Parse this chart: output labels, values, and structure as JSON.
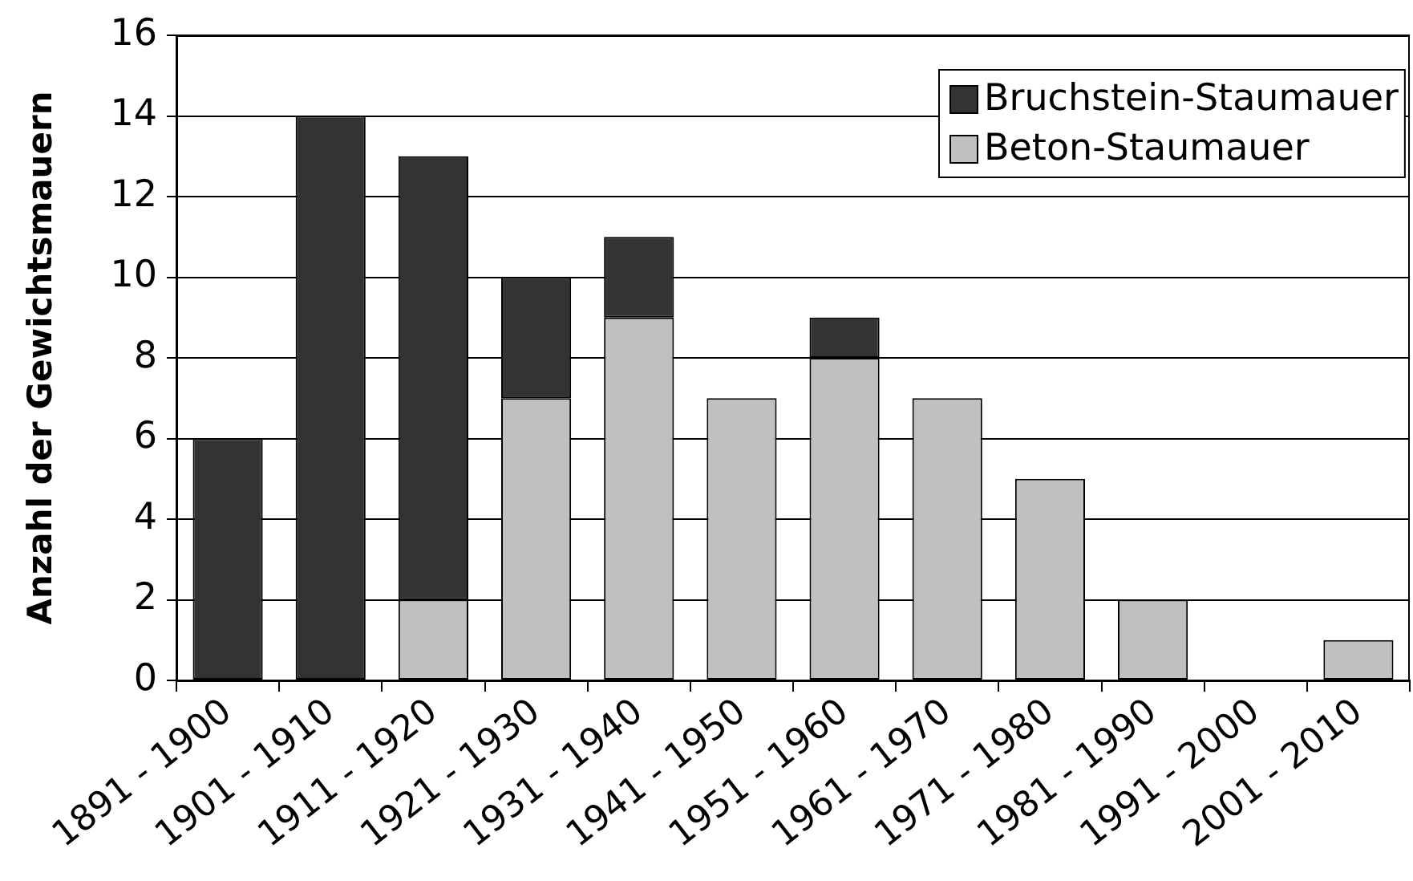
{
  "chart_data": {
    "type": "bar",
    "ylabel": "Anzahl der Gewichtsmauern",
    "categories": [
      "1891 - 1900",
      "1901 - 1910",
      "1911 - 1920",
      "1921 - 1930",
      "1931 - 1940",
      "1941 - 1950",
      "1951 - 1960",
      "1961 - 1970",
      "1971 - 1980",
      "1981 - 1990",
      "1991 - 2000",
      "2001 - 2010"
    ],
    "series": [
      {
        "name": "Beton-Staumauer",
        "color": "#c0c0c0",
        "values": [
          0,
          0,
          2,
          7,
          9,
          7,
          8,
          7,
          5,
          2,
          0,
          1
        ]
      },
      {
        "name": "Bruchstein-Staumauer",
        "color": "#333333",
        "values": [
          6,
          14,
          11,
          3,
          2,
          0,
          1,
          0,
          0,
          0,
          0,
          0
        ]
      }
    ],
    "stacked": true,
    "ylim": [
      0,
      16
    ],
    "yticks": [
      0,
      2,
      4,
      6,
      8,
      10,
      12,
      14,
      16
    ],
    "grid": "y",
    "legend": "top right"
  }
}
